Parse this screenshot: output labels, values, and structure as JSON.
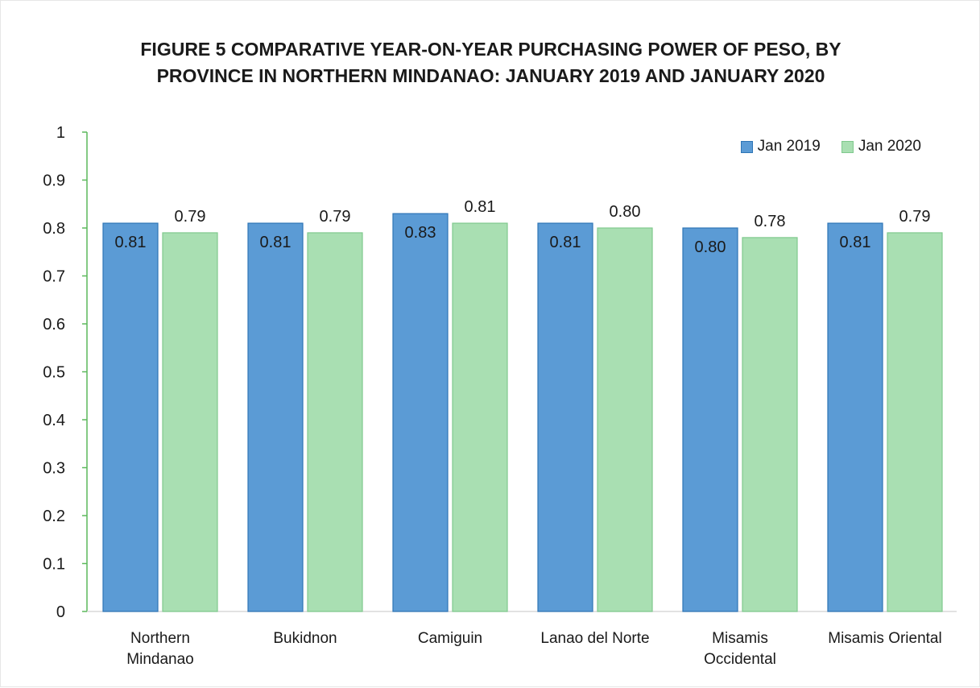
{
  "chart_data": {
    "type": "bar",
    "title_line1": "FIGURE 5 COMPARATIVE YEAR-ON-YEAR PURCHASING POWER OF PESO, BY",
    "title_line2": "PROVINCE IN NORTHERN MINDANAO: JANUARY 2019 AND JANUARY 2020",
    "xlabel": "",
    "ylabel": "",
    "ylim": [
      0,
      1
    ],
    "yticks": [
      0,
      0.1,
      0.2,
      0.3,
      0.4,
      0.5,
      0.6,
      0.7,
      0.8,
      0.9,
      1
    ],
    "ytick_labels": [
      "0",
      "0.1",
      "0.2",
      "0.3",
      "0.4",
      "0.5",
      "0.6",
      "0.7",
      "0.8",
      "0.9",
      "1"
    ],
    "grid": false,
    "legend_position": "top-right",
    "categories": [
      [
        "Northern",
        "Mindanao"
      ],
      [
        "Bukidnon"
      ],
      [
        "Camiguin"
      ],
      [
        "Lanao del Norte"
      ],
      [
        "Misamis",
        "Occidental"
      ],
      [
        "Misamis Oriental"
      ]
    ],
    "series": [
      {
        "name": "Jan 2019",
        "color": "#5b9bd5",
        "edge": "#2e75b6",
        "values": [
          0.81,
          0.81,
          0.83,
          0.81,
          0.8,
          0.81
        ],
        "labels": [
          "0.81",
          "0.81",
          "0.83",
          "0.81",
          "0.80",
          "0.81"
        ],
        "label_position": "inside"
      },
      {
        "name": "Jan 2020",
        "color": "#a9dfb2",
        "edge": "#7fc98d",
        "values": [
          0.79,
          0.79,
          0.81,
          0.8,
          0.78,
          0.79
        ],
        "labels": [
          "0.79",
          "0.79",
          "0.81",
          "0.80",
          "0.78",
          "0.79"
        ],
        "label_position": "above"
      }
    ],
    "axis_color": "#5cb85c"
  }
}
